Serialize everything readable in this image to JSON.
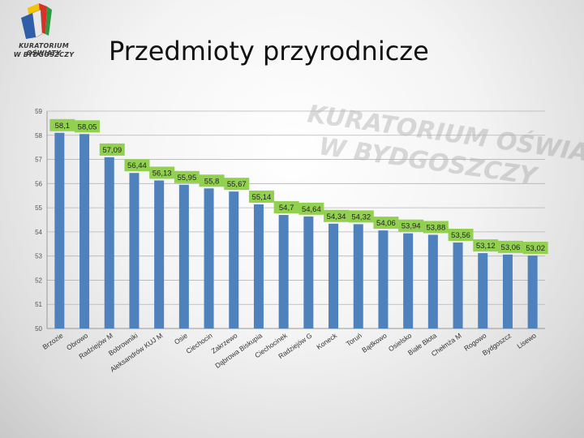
{
  "logo": {
    "line1": "KURATORIUM OŚWIATY",
    "line2": "W BYDGOSZCZY"
  },
  "title": "Przedmioty przyrodnicze",
  "watermark": {
    "line1": "KURATORIUM OŚWIATY",
    "line2": "W BYDGOSZCZY"
  },
  "colors": {
    "bar": "#4f81bd",
    "label_bg": "#92d050",
    "grid": "#b5b5b5"
  },
  "chart_data": {
    "type": "bar",
    "categories": [
      "Brzozie",
      "Obrowo",
      "Radziejów M",
      "Bobrowniki",
      "Aleksandrów KUJ M",
      "Osie",
      "Ciechocin",
      "Zakrzewo",
      "Dąbrowa Biskupia",
      "Ciechocinek",
      "Radziejów G",
      "Koneck",
      "Toruń",
      "Bądkowo",
      "Osielsko",
      "Białe Błota",
      "Chełmża M",
      "Rogowo",
      "Bydgoszcz",
      "Lisewo"
    ],
    "values": [
      58.1,
      58.05,
      57.09,
      56.44,
      56.13,
      55.95,
      55.8,
      55.67,
      55.14,
      54.7,
      54.64,
      54.34,
      54.32,
      54.06,
      53.94,
      53.88,
      53.56,
      53.12,
      53.06,
      53.02
    ],
    "data_labels": [
      "58,1",
      "58,05",
      "57,09",
      "56,44",
      "56,13",
      "55,95",
      "55,8",
      "55,67",
      "55,14",
      "54,7",
      "54,64",
      "54,34",
      "54,32",
      "54,06",
      "53,94",
      "53,88",
      "53,56",
      "53,12",
      "53,06",
      "53,02"
    ],
    "y_ticks": [
      "50",
      "51",
      "52",
      "53",
      "54",
      "55",
      "56",
      "57",
      "58",
      "59"
    ],
    "ylim": [
      50,
      59
    ],
    "grid": true,
    "legend": false
  }
}
